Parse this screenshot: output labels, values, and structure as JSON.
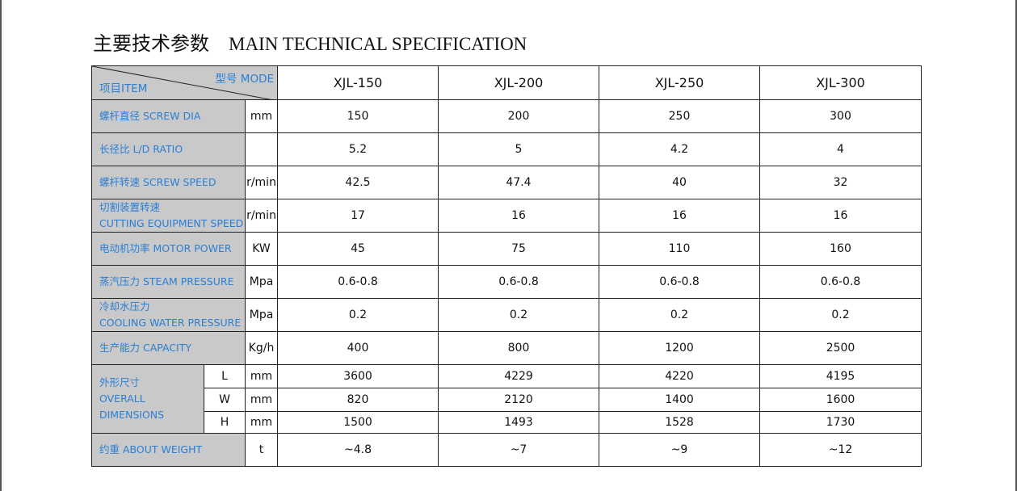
{
  "title": {
    "zh": "主要技术参数",
    "en": "MAIN TECHNICAL SPECIFICATION"
  },
  "table": {
    "corner": {
      "model": "型号 MODE",
      "item": "项目ITEM"
    },
    "models": [
      "XJL-150",
      "XJL-200",
      "XJL-250",
      "XJL-300"
    ],
    "rows": [
      {
        "label": [
          "螺杆直径  SCREW DIA"
        ],
        "unit": "mm",
        "values": [
          "150",
          "200",
          "250",
          "300"
        ]
      },
      {
        "label": [
          "长径比  L/D RATIO"
        ],
        "values": [
          "5.2",
          "5",
          "4.2",
          "4"
        ]
      },
      {
        "label": [
          "螺杆转速  SCREW SPEED"
        ],
        "unit": "r/min",
        "values": [
          "42.5",
          "47.4",
          "40",
          "32"
        ]
      },
      {
        "label": [
          "切割装置转速",
          "CUTTING EQUIPMENT SPEED"
        ],
        "unit": "r/min",
        "values": [
          "17",
          "16",
          "16",
          "16"
        ]
      },
      {
        "label": [
          "电动机功率  MOTOR POWER"
        ],
        "unit": "KW",
        "values": [
          "45",
          "75",
          "110",
          "160"
        ]
      },
      {
        "label": [
          "蒸汽压力  STEAM PRESSURE"
        ],
        "unit": "Mpa",
        "values": [
          "0.6-0.8",
          "0.6-0.8",
          "0.6-0.8",
          "0.6-0.8"
        ]
      },
      {
        "label": [
          "冷却水压力",
          "COOLING WATER PRESSURE"
        ],
        "unit": "Mpa",
        "values": [
          "0.2",
          "0.2",
          "0.2",
          "0.2"
        ]
      },
      {
        "label": [
          "生产能力  CAPACITY"
        ],
        "unit": "Kg/h",
        "values": [
          "400",
          "800",
          "1200",
          "2500"
        ]
      },
      {
        "label": [
          "外形尺寸",
          "OVERALL",
          "DIMENSIONS"
        ],
        "sub": [
          {
            "axis": "L",
            "unit": "mm",
            "values": [
              "3600",
              "4229",
              "4220",
              "4195"
            ]
          },
          {
            "axis": "W",
            "unit": "mm",
            "values": [
              "820",
              "2120",
              "1400",
              "1600"
            ]
          },
          {
            "axis": "H",
            "unit": "mm",
            "values": [
              "1500",
              "1493",
              "1528",
              "1730"
            ]
          }
        ]
      },
      {
        "label": [
          "约重   ABOUT WEIGHT"
        ],
        "unit": "t",
        "values": [
          "~4.8",
          "~7",
          "~9",
          "~12"
        ]
      }
    ]
  }
}
